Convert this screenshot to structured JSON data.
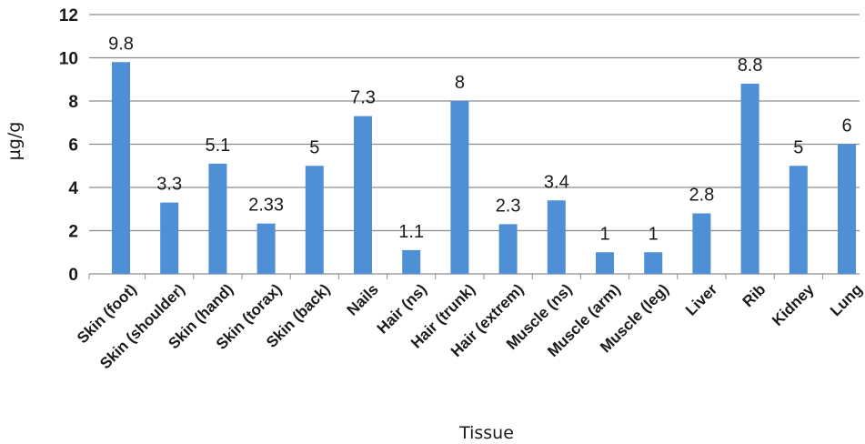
{
  "chart_data": {
    "type": "bar",
    "title": "",
    "xlabel": "Tissue",
    "ylabel": "µg/g",
    "ylim": [
      0,
      12
    ],
    "yticks": [
      0,
      2,
      4,
      6,
      8,
      10,
      12
    ],
    "grid": true,
    "legend": "none",
    "bar_color": "#4f8fd6",
    "grid_color": "#8c8c8c",
    "categories": [
      "Skin (foot)",
      "Skin (shoulder)",
      "Skin (hand)",
      "Skin (torax)",
      "Skin (back)",
      "Nails",
      "Hair (ns)",
      "Hair (trunk)",
      "Hair (extrem)",
      "Muscle (ns)",
      "Muscle (arm)",
      "Muscle (leg)",
      "Liver",
      "Rib",
      "Kidney",
      "Lung"
    ],
    "values": [
      9.8,
      3.3,
      5.1,
      2.33,
      5,
      7.3,
      1.1,
      8,
      2.3,
      3.4,
      1,
      1,
      2.8,
      8.8,
      5,
      6
    ],
    "value_labels": [
      "9.8",
      "3.3",
      "5.1",
      "2.33",
      "5",
      "7.3",
      "1.1",
      "8",
      "2.3",
      "3.4",
      "1",
      "1",
      "2.8",
      "8.8",
      "5",
      "6"
    ]
  }
}
